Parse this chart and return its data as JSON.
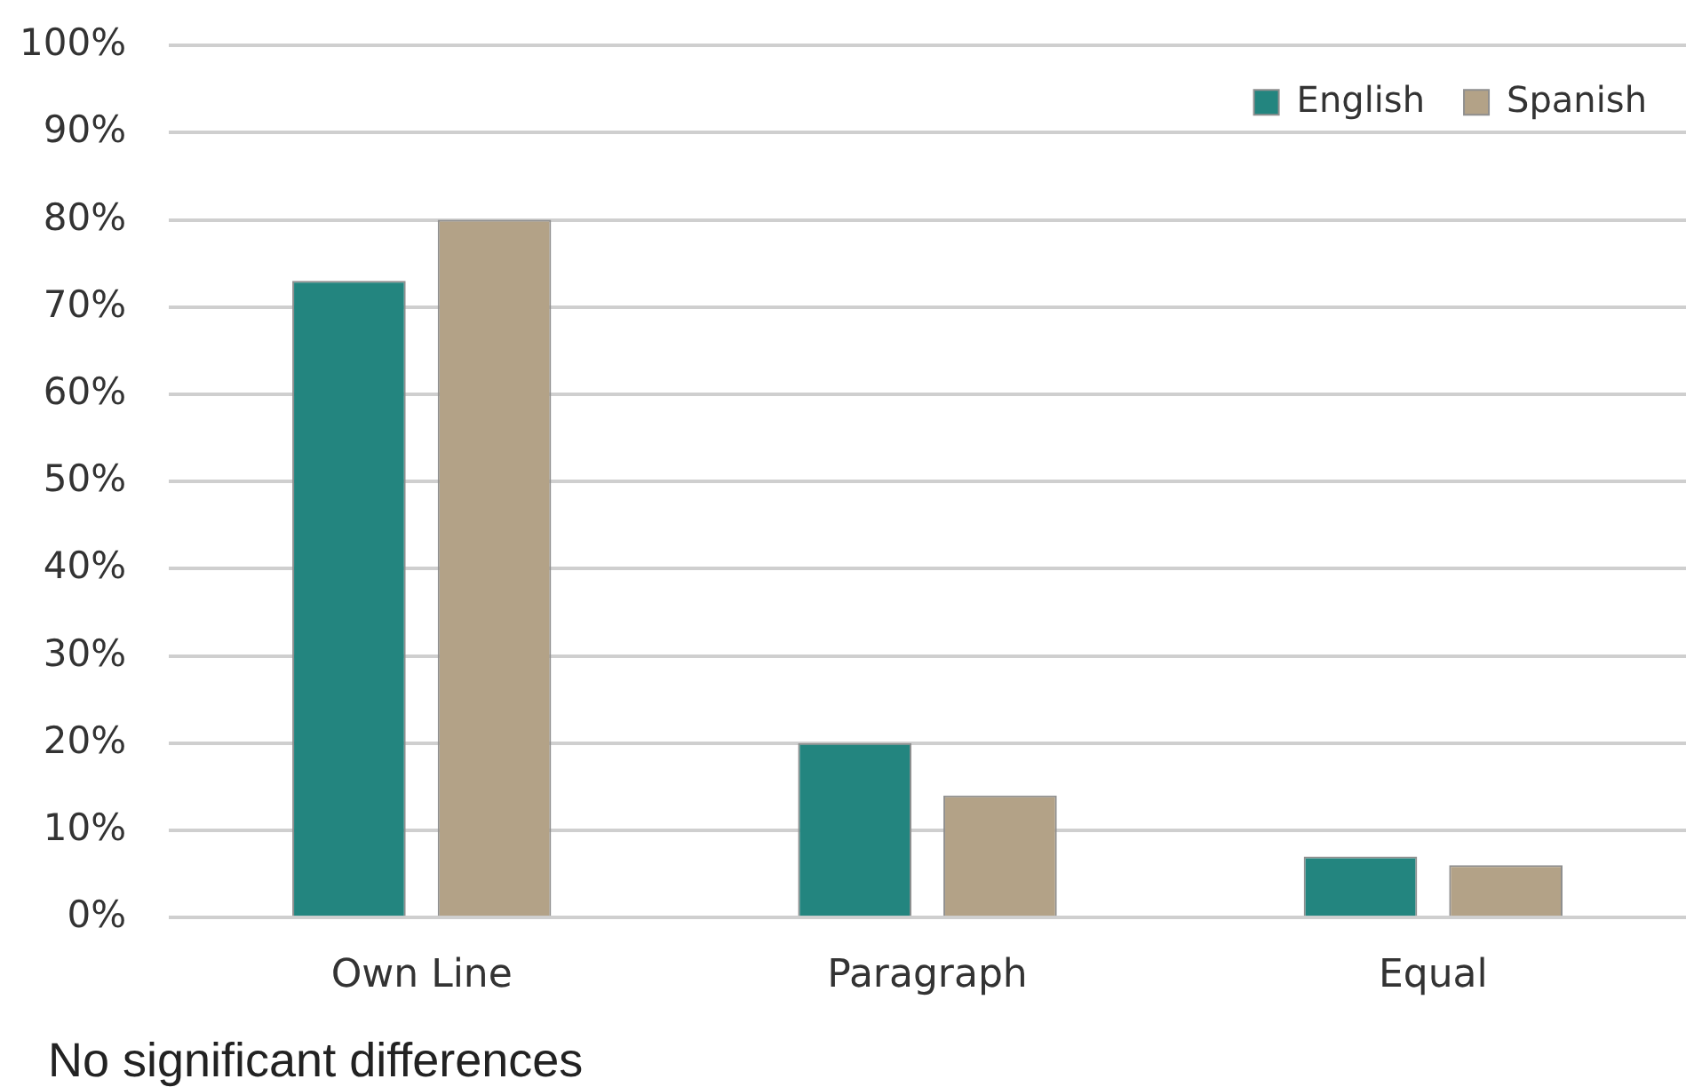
{
  "chart_data": {
    "type": "bar",
    "categories": [
      "Own Line",
      "Paragraph",
      "Equal"
    ],
    "series": [
      {
        "name": "English",
        "color": "#23857f",
        "values": [
          73,
          20,
          7
        ]
      },
      {
        "name": "Spanish",
        "color": "#b3a287",
        "values": [
          80,
          14,
          6
        ]
      }
    ],
    "ylim": [
      0,
      100
    ],
    "yticks": [
      {
        "value": 0,
        "label": "0%"
      },
      {
        "value": 10,
        "label": "10%"
      },
      {
        "value": 20,
        "label": "20%"
      },
      {
        "value": 30,
        "label": "30%"
      },
      {
        "value": 40,
        "label": "40%"
      },
      {
        "value": 50,
        "label": "50%"
      },
      {
        "value": 60,
        "label": "60%"
      },
      {
        "value": 70,
        "label": "70%"
      },
      {
        "value": 80,
        "label": "80%"
      },
      {
        "value": 90,
        "label": "90%"
      },
      {
        "value": 100,
        "label": "100%"
      }
    ],
    "grid": "y",
    "legend": "top right",
    "annotations": [
      "No significant differences"
    ]
  }
}
